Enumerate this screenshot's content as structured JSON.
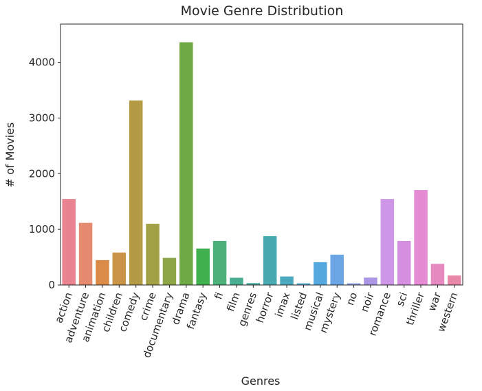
{
  "chart_data": {
    "type": "bar",
    "title": "Movie Genre Distribution",
    "xlabel": "Genres",
    "ylabel": "# of Movies",
    "categories": [
      "action",
      "adventure",
      "animation",
      "children",
      "comedy",
      "crime",
      "documentary",
      "drama",
      "fantasy",
      "fi",
      "film",
      "genres",
      "horror",
      "imax",
      "listed",
      "musical",
      "mystery",
      "no",
      "noir",
      "romance",
      "sci",
      "thriller",
      "war",
      "western"
    ],
    "values": [
      1545,
      1117,
      447,
      583,
      3315,
      1100,
      487,
      4361,
      654,
      792,
      130,
      34,
      877,
      153,
      30,
      410,
      545,
      30,
      133,
      1545,
      792,
      1706,
      380,
      170
    ],
    "colors": [
      "#e8838f",
      "#e58a6f",
      "#da8b48",
      "#c99447",
      "#b39b45",
      "#a2a146",
      "#8da547",
      "#6fa945",
      "#3fb04d",
      "#4bb07a",
      "#49ad91",
      "#47aba3",
      "#48a9b0",
      "#4ba9bf",
      "#50aacf",
      "#55a8de",
      "#6ba5e4",
      "#8ea0e6",
      "#ab96e6",
      "#cd96e6",
      "#d48fe0",
      "#e58bd4",
      "#e689c0",
      "#e887a8"
    ],
    "ylim": [
      0,
      4500
    ],
    "yticks": [
      0,
      1000,
      2000,
      3000,
      4000
    ],
    "grid": false,
    "legend": "none"
  }
}
